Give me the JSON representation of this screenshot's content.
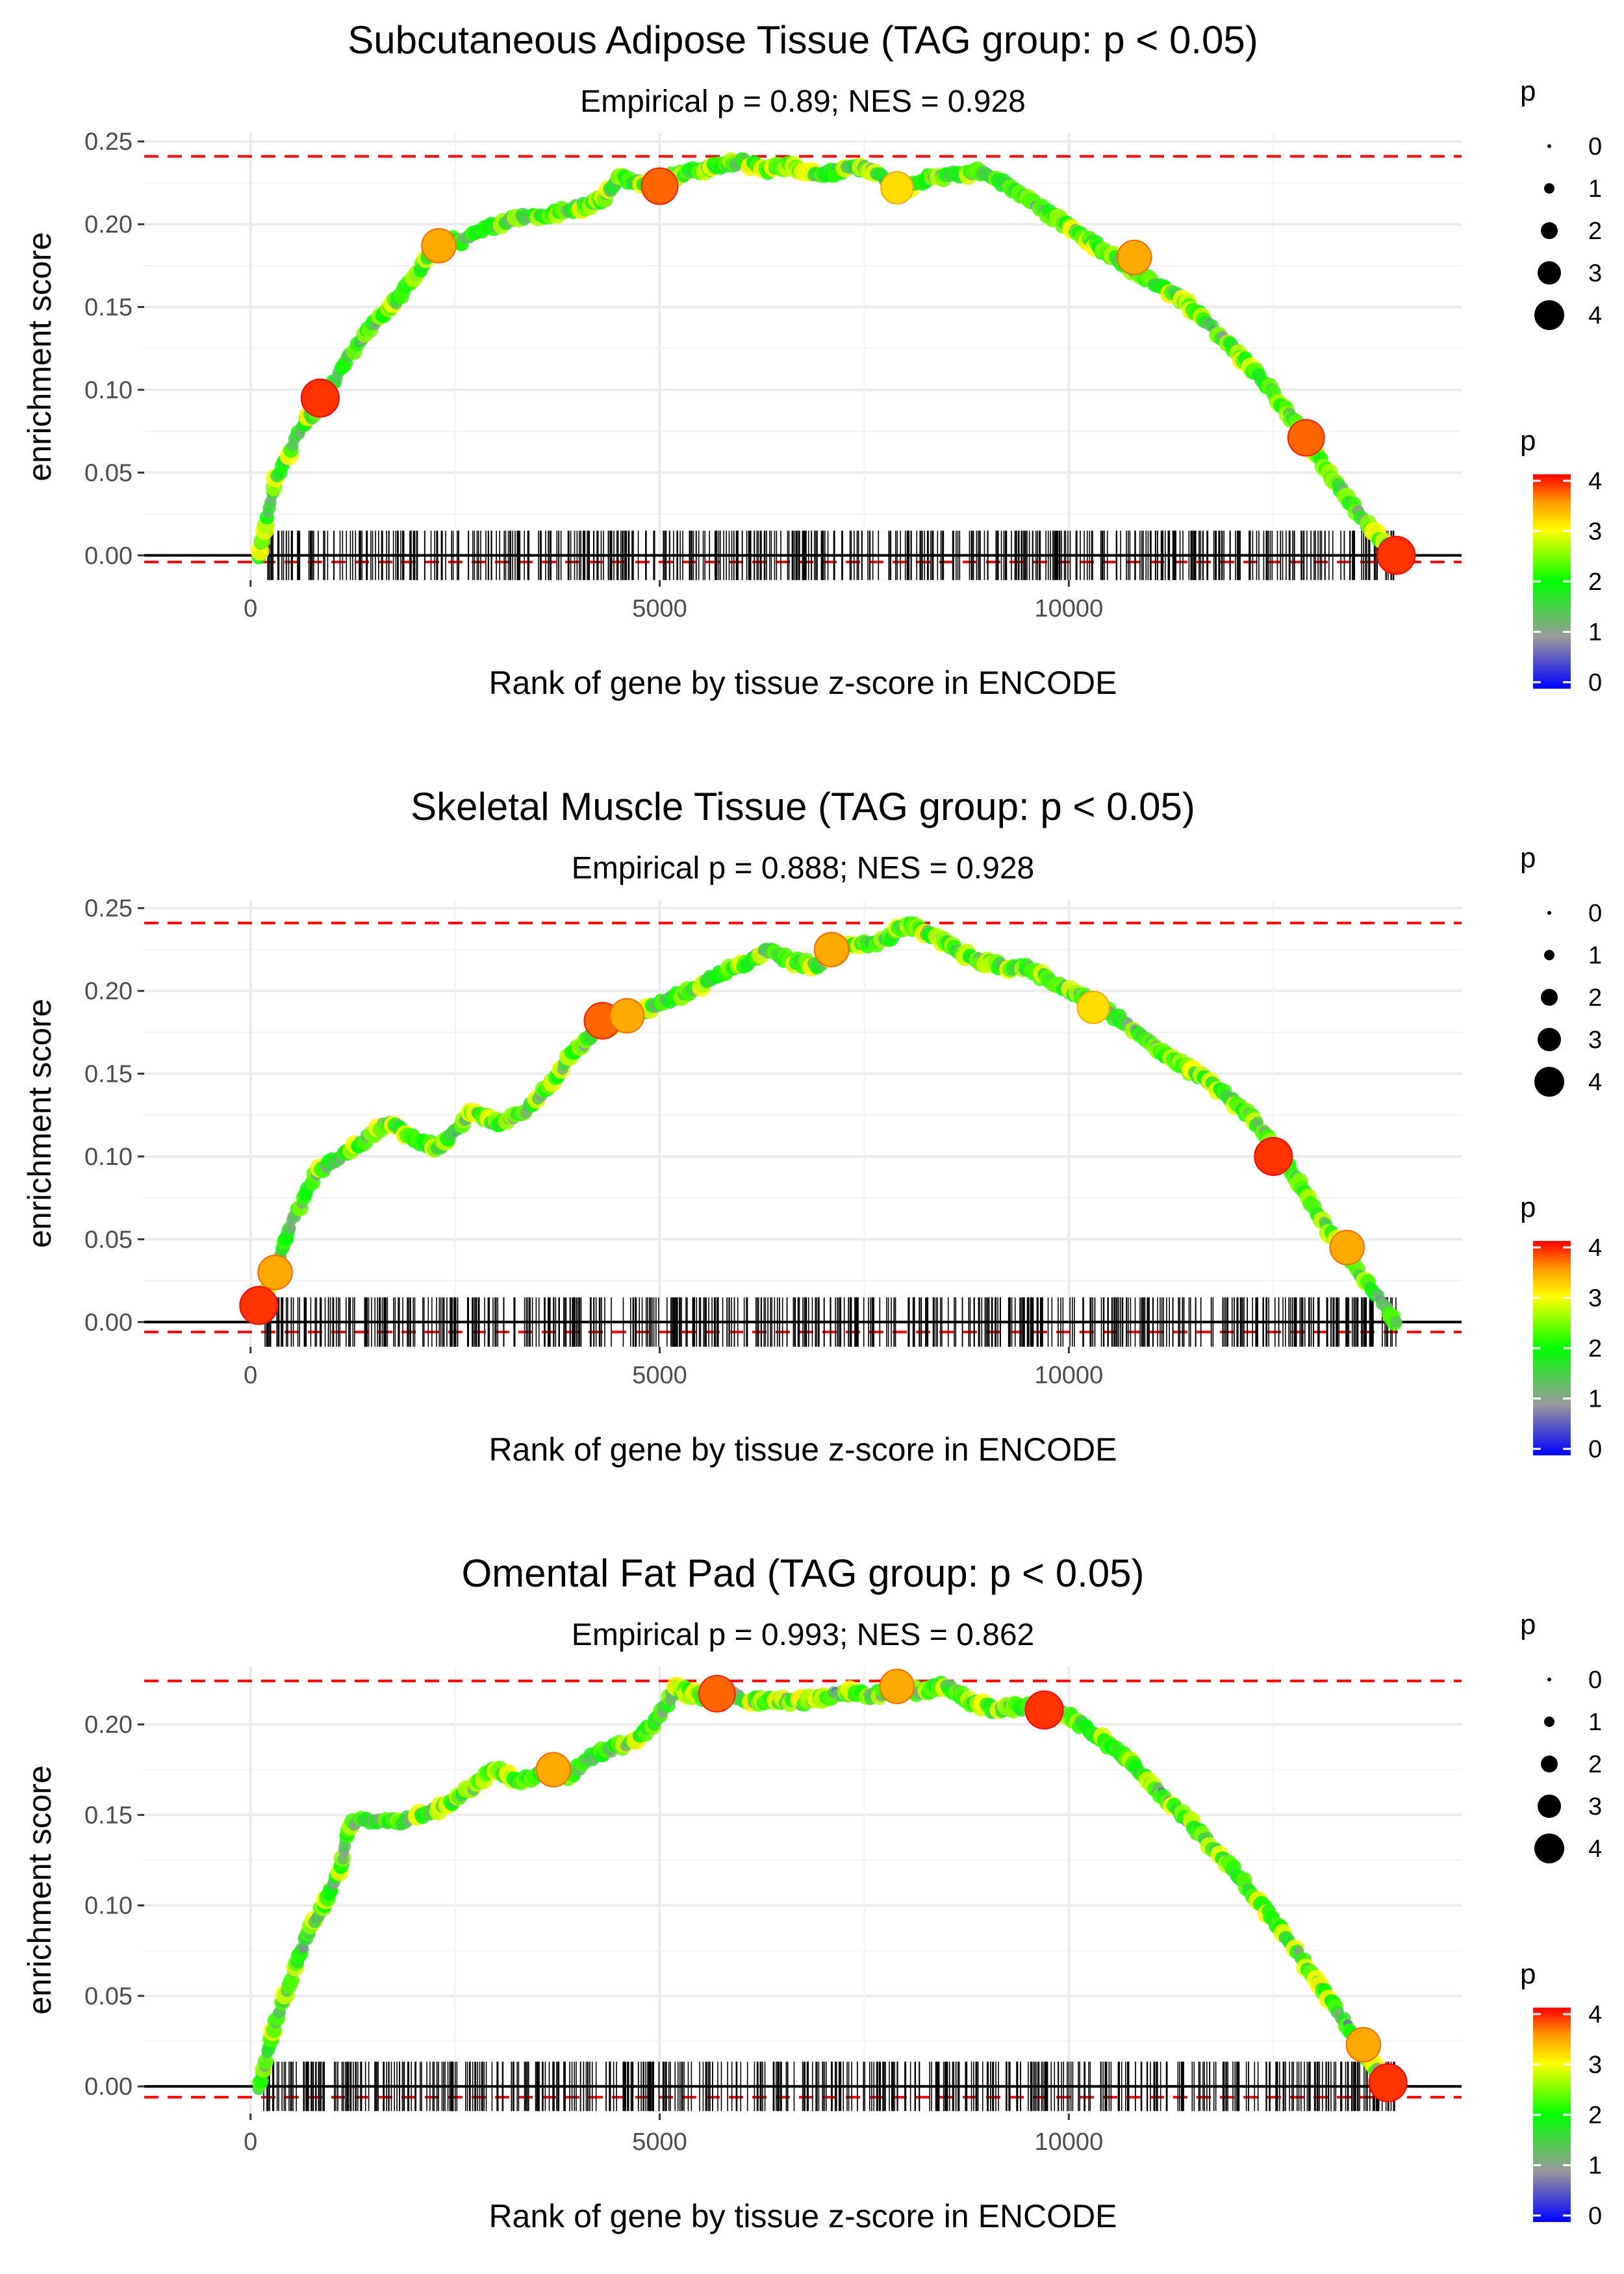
{
  "chart_data": [
    {
      "type": "line",
      "title": "Subcutaneous Adipose Tissue (TAG group: p < 0.05)",
      "subtitle": "Empirical p = 0.89; NES = 0.928",
      "xlabel": "Rank of gene by tissue z-score in ENCODE",
      "ylabel": "enrichment score",
      "xlim": [
        -1300,
        14800
      ],
      "ylim": [
        -0.015,
        0.255
      ],
      "x_ticks": [
        0,
        5000,
        10000
      ],
      "x_tick_labels": [
        "0",
        "5000",
        "10000"
      ],
      "y_ticks": [
        0,
        0.05,
        0.1,
        0.15,
        0.2,
        0.25
      ],
      "y_tick_labels": [
        "0.00",
        "0.05",
        "0.10",
        "0.15",
        "0.20",
        "0.25"
      ],
      "ref_lines": [
        0.241,
        -0.004
      ],
      "curve": {
        "x": [
          100,
          300,
          600,
          900,
          1200,
          1500,
          1800,
          2100,
          2300,
          2600,
          3000,
          3300,
          3600,
          4000,
          4300,
          4500,
          4800,
          5100,
          5400,
          5700,
          6000,
          6300,
          6600,
          6900,
          7200,
          7500,
          7800,
          8000,
          8300,
          8600,
          8900,
          9200,
          9500,
          9800,
          10100,
          10400,
          10700,
          11000,
          11300,
          11600,
          11900,
          12200,
          12500,
          12800,
          13100,
          13400,
          13700,
          14000
        ],
        "y": [
          0.0,
          0.045,
          0.075,
          0.095,
          0.12,
          0.14,
          0.155,
          0.175,
          0.19,
          0.19,
          0.2,
          0.205,
          0.205,
          0.21,
          0.215,
          0.228,
          0.226,
          0.228,
          0.232,
          0.235,
          0.238,
          0.233,
          0.236,
          0.23,
          0.232,
          0.235,
          0.225,
          0.222,
          0.228,
          0.23,
          0.232,
          0.225,
          0.215,
          0.205,
          0.195,
          0.185,
          0.175,
          0.165,
          0.158,
          0.145,
          0.13,
          0.115,
          0.098,
          0.078,
          0.055,
          0.035,
          0.015,
          0.0
        ]
      },
      "highlight_points": [
        {
          "x": 850,
          "y": 0.095,
          "p": 4
        },
        {
          "x": 2300,
          "y": 0.187,
          "p": 3.5
        },
        {
          "x": 5000,
          "y": 0.223,
          "p": 3.8
        },
        {
          "x": 7900,
          "y": 0.222,
          "p": 3.2
        },
        {
          "x": 10800,
          "y": 0.18,
          "p": 3.5
        },
        {
          "x": 12900,
          "y": 0.071,
          "p": 3.8
        },
        {
          "x": 14000,
          "y": 0.0,
          "p": 4
        }
      ],
      "rug_count": 560,
      "rug_xmax": 14000
    },
    {
      "type": "line",
      "title": "Skeletal Muscle Tissue (TAG group: p < 0.05)",
      "subtitle": "Empirical p = 0.888; NES = 0.928",
      "xlabel": "Rank of gene by tissue z-score in ENCODE",
      "ylabel": "enrichment score",
      "xlim": [
        -1300,
        14800
      ],
      "ylim": [
        -0.015,
        0.255
      ],
      "x_ticks": [
        0,
        5000,
        10000
      ],
      "x_tick_labels": [
        "0",
        "5000",
        "10000"
      ],
      "y_ticks": [
        0,
        0.05,
        0.1,
        0.15,
        0.2,
        0.25
      ],
      "y_tick_labels": [
        "0.00",
        "0.05",
        "0.10",
        "0.15",
        "0.20",
        "0.25"
      ],
      "ref_lines": [
        0.241,
        -0.006
      ],
      "curve": {
        "x": [
          100,
          300,
          500,
          800,
          1100,
          1400,
          1700,
          2000,
          2300,
          2500,
          2700,
          3000,
          3300,
          3600,
          3900,
          4200,
          4500,
          4800,
          5100,
          5400,
          5700,
          6000,
          6300,
          6600,
          6900,
          7200,
          7500,
          7800,
          8000,
          8300,
          8600,
          8900,
          9200,
          9500,
          9800,
          10100,
          10400,
          10700,
          11000,
          11300,
          11600,
          11900,
          12200,
          12500,
          12800,
          13100,
          13400,
          13700,
          14000
        ],
        "y": [
          0.01,
          0.03,
          0.06,
          0.09,
          0.1,
          0.11,
          0.122,
          0.11,
          0.105,
          0.115,
          0.128,
          0.12,
          0.125,
          0.14,
          0.16,
          0.175,
          0.182,
          0.188,
          0.195,
          0.2,
          0.21,
          0.215,
          0.225,
          0.218,
          0.215,
          0.225,
          0.228,
          0.232,
          0.24,
          0.235,
          0.225,
          0.218,
          0.215,
          0.214,
          0.205,
          0.198,
          0.19,
          0.18,
          0.168,
          0.158,
          0.148,
          0.138,
          0.125,
          0.108,
          0.085,
          0.06,
          0.04,
          0.02,
          0.0
        ]
      },
      "highlight_points": [
        {
          "x": 100,
          "y": 0.01,
          "p": 4
        },
        {
          "x": 300,
          "y": 0.03,
          "p": 3.5
        },
        {
          "x": 4300,
          "y": 0.182,
          "p": 3.8
        },
        {
          "x": 4600,
          "y": 0.185,
          "p": 3.5
        },
        {
          "x": 7100,
          "y": 0.225,
          "p": 3.5
        },
        {
          "x": 10300,
          "y": 0.19,
          "p": 3.2
        },
        {
          "x": 12500,
          "y": 0.1,
          "p": 4
        },
        {
          "x": 13400,
          "y": 0.045,
          "p": 3.5
        }
      ],
      "rug_count": 560,
      "rug_xmax": 14000
    },
    {
      "type": "line",
      "title": "Omental Fat Pad (TAG group: p < 0.05)",
      "subtitle": "Empirical p = 0.993; NES = 0.862",
      "xlabel": "Rank of gene by tissue z-score in ENCODE",
      "ylabel": "enrichment score",
      "xlim": [
        -1300,
        14800
      ],
      "ylim": [
        -0.015,
        0.232
      ],
      "x_ticks": [
        0,
        5000,
        10000
      ],
      "x_tick_labels": [
        "0",
        "5000",
        "10000"
      ],
      "y_ticks": [
        0,
        0.05,
        0.1,
        0.15,
        0.2
      ],
      "y_tick_labels": [
        "0.00",
        "0.05",
        "0.10",
        "0.15",
        "0.20"
      ],
      "ref_lines": [
        0.224,
        -0.006
      ],
      "curve": {
        "x": [
          100,
          300,
          500,
          700,
          900,
          1100,
          1200,
          1500,
          1800,
          2100,
          2400,
          2700,
          3000,
          3300,
          3600,
          3900,
          4200,
          4500,
          4800,
          5000,
          5200,
          5500,
          5800,
          6100,
          6400,
          6700,
          7000,
          7300,
          7600,
          7900,
          8200,
          8500,
          8800,
          9100,
          9400,
          9700,
          10000,
          10300,
          10600,
          10900,
          11200,
          11500,
          11800,
          12100,
          12400,
          12700,
          13000,
          13300,
          13600,
          13900
        ],
        "y": [
          0.0,
          0.035,
          0.06,
          0.085,
          0.1,
          0.12,
          0.145,
          0.147,
          0.146,
          0.15,
          0.155,
          0.165,
          0.175,
          0.168,
          0.175,
          0.172,
          0.183,
          0.188,
          0.195,
          0.205,
          0.22,
          0.215,
          0.218,
          0.213,
          0.214,
          0.212,
          0.215,
          0.218,
          0.216,
          0.22,
          0.218,
          0.222,
          0.212,
          0.208,
          0.21,
          0.208,
          0.205,
          0.195,
          0.185,
          0.172,
          0.158,
          0.145,
          0.13,
          0.115,
          0.098,
          0.08,
          0.06,
          0.04,
          0.02,
          0.0
        ]
      },
      "highlight_points": [
        {
          "x": 3700,
          "y": 0.175,
          "p": 3.5
        },
        {
          "x": 5700,
          "y": 0.217,
          "p": 3.8
        },
        {
          "x": 7900,
          "y": 0.221,
          "p": 3.5
        },
        {
          "x": 9700,
          "y": 0.208,
          "p": 4
        },
        {
          "x": 13600,
          "y": 0.023,
          "p": 3.5
        },
        {
          "x": 13900,
          "y": 0.002,
          "p": 4
        }
      ],
      "rug_count": 560,
      "rug_xmax": 14000
    }
  ],
  "legend": {
    "size_title": "p",
    "size_labels": [
      "0",
      "1",
      "2",
      "3",
      "4"
    ],
    "color_title": "p",
    "color_labels": [
      "0",
      "1",
      "2",
      "3",
      "4"
    ],
    "color_stops": [
      "#0000ff",
      "#9a9a9a",
      "#00ff00",
      "#ffff00",
      "#ff9900",
      "#ff0000"
    ]
  }
}
